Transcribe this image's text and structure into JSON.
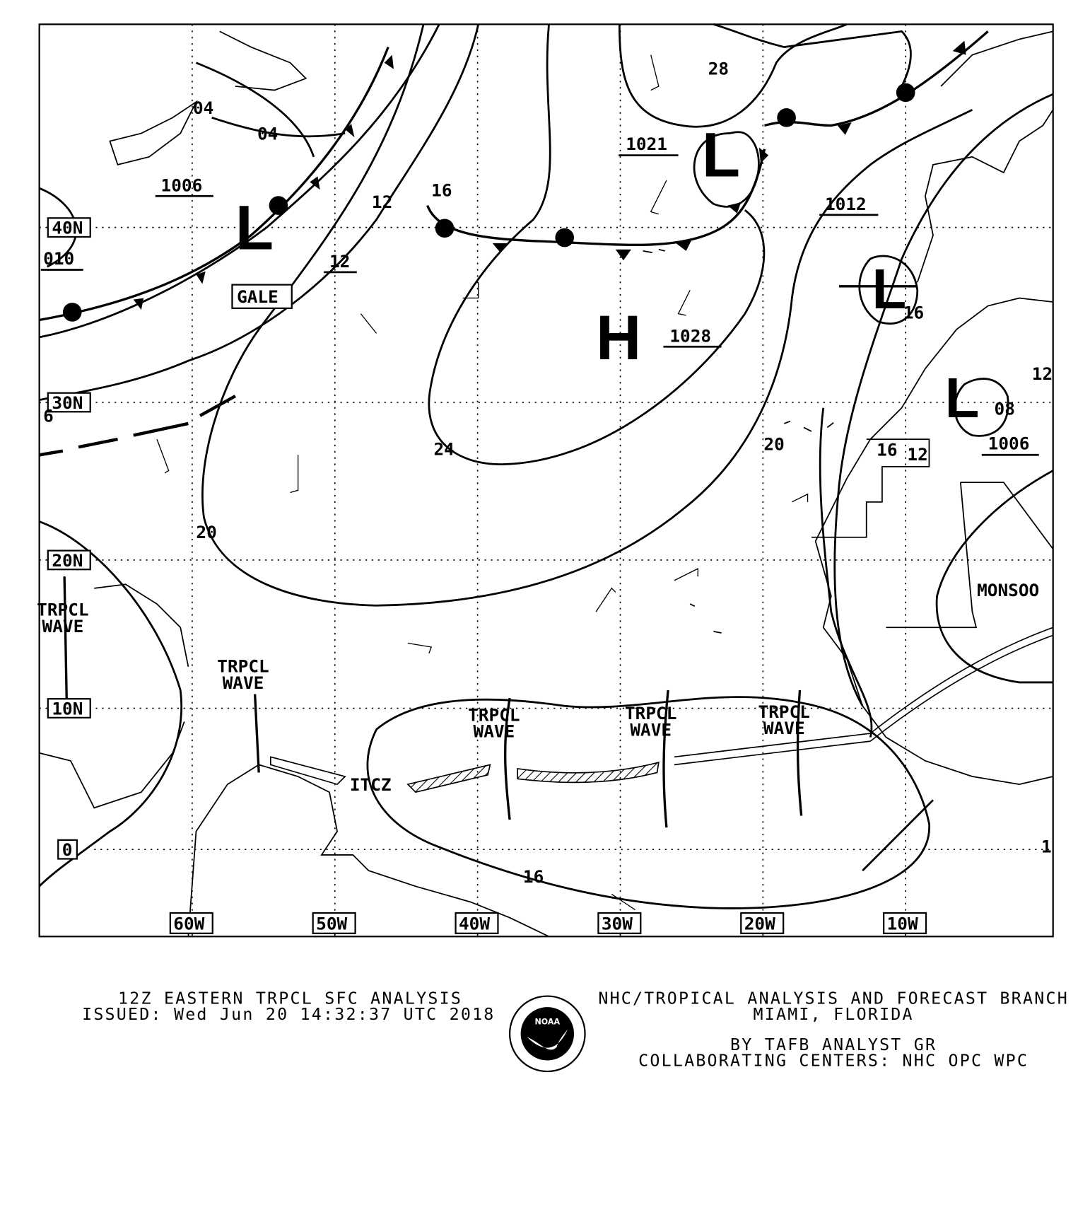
{
  "map": {
    "lat_labels": [
      "40N",
      "30N",
      "20N",
      "10N",
      "0"
    ],
    "lon_labels": [
      "60W",
      "50W",
      "40W",
      "30W",
      "20W",
      "10W"
    ],
    "pressure_centers": [
      {
        "type": "L",
        "value": "1006"
      },
      {
        "type": "L",
        "value": "1021"
      },
      {
        "type": "H",
        "value": "1028"
      },
      {
        "type": "L",
        "value": "1012"
      },
      {
        "type": "L",
        "value": "1006"
      }
    ],
    "isobar_labels": [
      "04",
      "04",
      "1006",
      "12",
      "16",
      "12",
      "28",
      "16",
      "08",
      "12",
      "24",
      "20",
      "20",
      "16",
      "010",
      "6",
      "1",
      "16",
      "12"
    ],
    "feature_labels": {
      "gale": "GALE",
      "itcz": "ITCZ",
      "monsoon": "MONSOO",
      "tropical_waves": [
        "TRPCL WAVE",
        "TRPCL WAVE",
        "TRPCL WAVE",
        "TRPCL WAVE",
        "TRPCL WAVE"
      ]
    }
  },
  "footer": {
    "title": "12Z EASTERN TRPCL SFC ANALYSIS",
    "issued": "ISSUED: Wed Jun 20 14:32:37 UTC 2018",
    "office": "NHC/TROPICAL ANALYSIS AND FORECAST BRANCH",
    "location": "MIAMI,  FLORIDA",
    "analyst": "BY TAFB ANALYST  GR",
    "centers": "COLLABORATING CENTERS: NHC OPC WPC",
    "logo_text": "NOAA"
  }
}
